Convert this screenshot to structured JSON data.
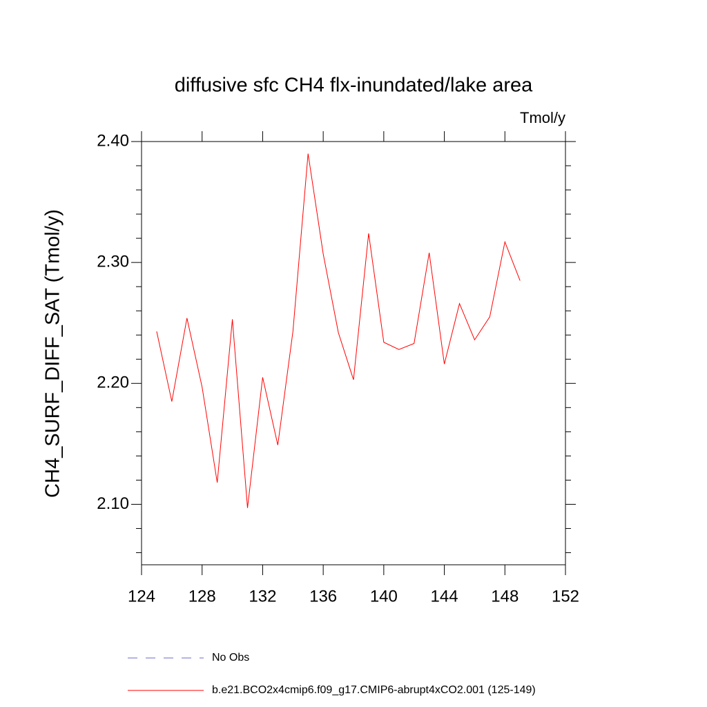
{
  "chart_data": {
    "type": "line",
    "title": "diffusive sfc CH4 flx-inundated/lake area",
    "units": "Tmol/y",
    "ylabel": "CH4_SURF_DIFF_SAT  (Tmol/y)",
    "x": [
      125,
      126,
      127,
      128,
      129,
      130,
      131,
      132,
      133,
      134,
      135,
      136,
      137,
      138,
      139,
      140,
      141,
      142,
      143,
      144,
      145,
      146,
      147,
      148,
      149
    ],
    "series": [
      {
        "name": "No Obs",
        "color": "#6a6acd",
        "dashed": true,
        "values": [
          null,
          null,
          null,
          null,
          null,
          null,
          null,
          null,
          null,
          null,
          null,
          null,
          null,
          null,
          null,
          null,
          null,
          null,
          null,
          null,
          null,
          null,
          null,
          null,
          null
        ]
      },
      {
        "name": "b.e21.BCO2x4cmip6.f09_g17.CMIP6-abrupt4xCO2.001 (125-149)",
        "color": "#ff0000",
        "dashed": false,
        "values": [
          2.243,
          2.185,
          2.254,
          2.197,
          2.118,
          2.253,
          2.097,
          2.205,
          2.149,
          2.243,
          2.39,
          2.307,
          2.242,
          2.203,
          2.324,
          2.234,
          2.228,
          2.233,
          2.308,
          2.216,
          2.266,
          2.236,
          2.255,
          2.317,
          2.285
        ]
      }
    ],
    "xlim": [
      124,
      152
    ],
    "xticks": [
      124,
      128,
      132,
      136,
      140,
      144,
      148,
      152
    ],
    "ylim": [
      2.05,
      2.4
    ],
    "yticks": [
      {
        "value": 2.1,
        "label": "2.10"
      },
      {
        "value": 2.2,
        "label": "2.20"
      },
      {
        "value": 2.3,
        "label": "2.30"
      },
      {
        "value": 2.4,
        "label": "2.40"
      }
    ],
    "yminorticks": [
      2.06,
      2.08,
      2.12,
      2.14,
      2.16,
      2.18,
      2.22,
      2.24,
      2.26,
      2.28,
      2.32,
      2.34,
      2.36,
      2.38
    ]
  }
}
